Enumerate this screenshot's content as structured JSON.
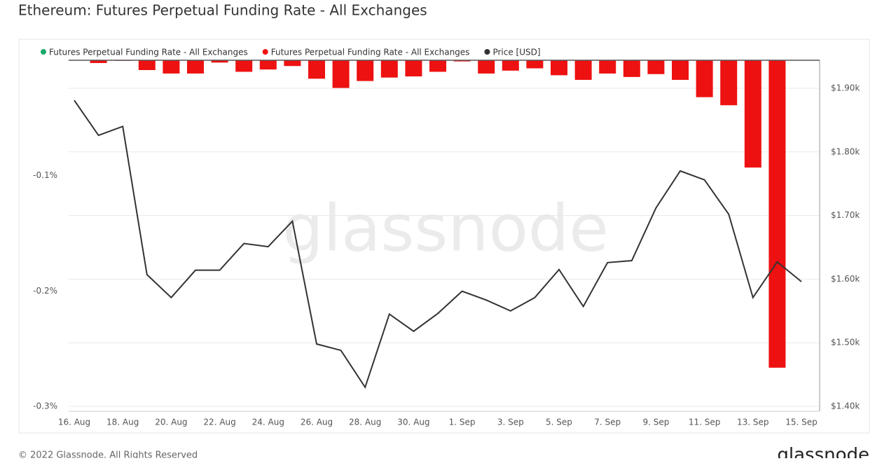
{
  "chart_data": {
    "type": "bar",
    "title": "Ethereum: Futures Perpetual Funding Rate - All Exchanges",
    "footer": "© 2022 Glassnode. All Rights Reserved",
    "watermark": "glassnode",
    "logo": "glassnode",
    "categories": [
      "16. Aug",
      null,
      "18. Aug",
      null,
      "20. Aug",
      null,
      "22. Aug",
      null,
      "24. Aug",
      null,
      "26. Aug",
      null,
      "28. Aug",
      null,
      "30. Aug",
      null,
      "1. Sep",
      null,
      "3. Sep",
      null,
      "5. Sep",
      null,
      "7. Sep",
      null,
      "9. Sep",
      null,
      "11. Sep",
      null,
      "13. Sep",
      null,
      "15. Sep"
    ],
    "series": [
      {
        "name": "Futures Perpetual Funding Rate - All Exchanges",
        "color": "#1aaa6a",
        "type": "bar",
        "values": [
          null,
          null,
          null,
          null,
          null,
          null,
          null,
          null,
          null,
          null,
          null,
          null,
          null,
          null,
          null,
          null,
          null,
          null,
          null,
          null,
          null,
          null,
          null,
          null,
          null,
          null,
          null,
          null,
          null,
          null,
          null
        ]
      },
      {
        "name": "Futures Perpetual Funding Rate - All Exchanges",
        "color": "#ee1111",
        "type": "bar",
        "values": [
          null,
          -0.0024,
          -0.0005,
          -0.0085,
          -0.0115,
          -0.0115,
          -0.002,
          -0.01,
          -0.008,
          -0.005,
          -0.016,
          -0.024,
          -0.018,
          -0.015,
          -0.014,
          -0.01,
          -0.001,
          -0.0115,
          -0.009,
          -0.007,
          -0.013,
          -0.017,
          -0.0115,
          -0.0145,
          -0.012,
          -0.017,
          -0.032,
          -0.039,
          -0.093,
          -0.2665,
          null
        ]
      },
      {
        "name": "Price [USD]",
        "color": "#333333",
        "type": "line",
        "axis": "y2",
        "values": [
          1881,
          1826,
          1840,
          1607,
          1571,
          1614,
          1614,
          1656,
          1651,
          1691,
          1498,
          1488,
          1430,
          1545,
          1518,
          1546,
          1581,
          1567,
          1550,
          1571,
          1615,
          1557,
          1626,
          1629,
          1712,
          1770,
          1756,
          1702,
          1571,
          1627,
          1596
        ]
      }
    ],
    "ylim": [
      -0.3,
      0
    ],
    "yticks": [
      {
        "value": -0.3,
        "label": "-0.3%"
      },
      {
        "value": -0.2,
        "label": "-0.2%"
      },
      {
        "value": -0.1,
        "label": "-0.1%"
      }
    ],
    "y2lim": [
      1400,
      1944
    ],
    "y2ticks": [
      {
        "value": 1400,
        "label": "$1.40k"
      },
      {
        "value": 1500,
        "label": "$1.50k"
      },
      {
        "value": 1600,
        "label": "$1.60k"
      },
      {
        "value": 1700,
        "label": "$1.70k"
      },
      {
        "value": 1800,
        "label": "$1.80k"
      },
      {
        "value": 1900,
        "label": "$1.90k"
      }
    ],
    "grid": true
  }
}
